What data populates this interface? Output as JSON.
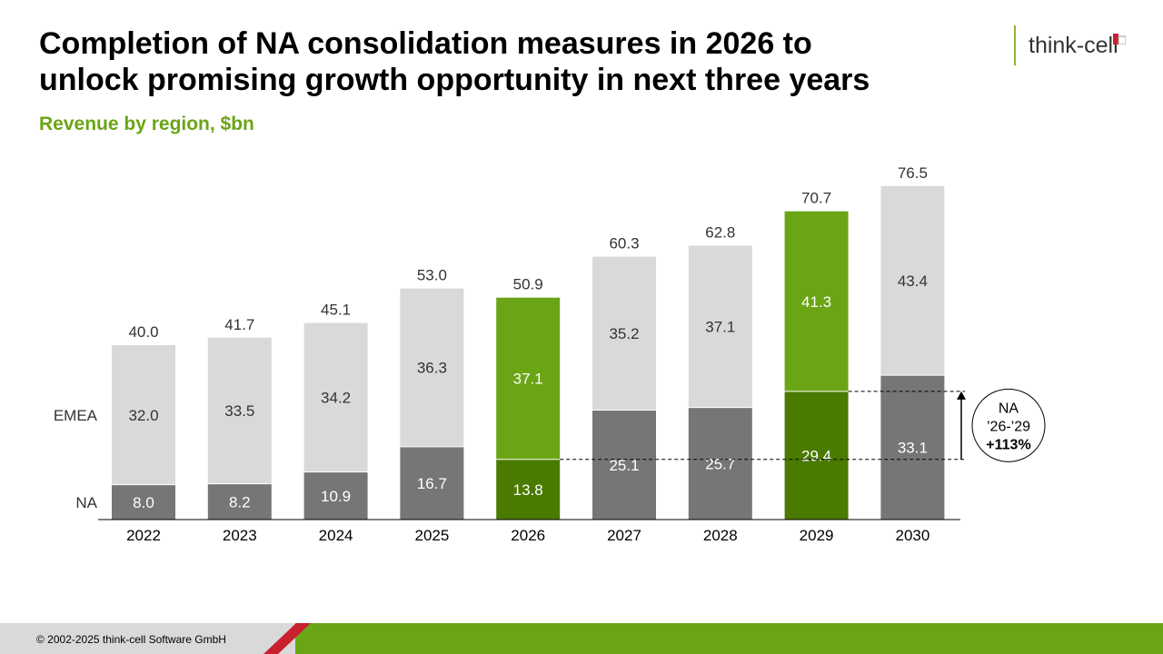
{
  "header": {
    "title_line1": "Completion of NA consolidation measures in 2026 to",
    "title_line2": "unlock promising growth opportunity in next three years",
    "subtitle": "Revenue by region, $bn",
    "logo": "think-cell"
  },
  "footer": {
    "copyright": "© 2002-2025 think-cell Software GmbH"
  },
  "chart_data": {
    "type": "bar",
    "stacked": true,
    "categories": [
      "2022",
      "2023",
      "2024",
      "2025",
      "2026",
      "2027",
      "2028",
      "2029",
      "2030"
    ],
    "series": [
      {
        "name": "NA",
        "values": [
          8.0,
          8.2,
          10.9,
          16.7,
          13.8,
          25.1,
          25.7,
          29.4,
          33.1
        ],
        "labels": [
          "8.0",
          "8.2",
          "10.9",
          "16.7",
          "13.8",
          "25.1",
          "25.7",
          "29.4",
          "33.1"
        ]
      },
      {
        "name": "EMEA",
        "values": [
          32.0,
          33.5,
          34.2,
          36.3,
          37.1,
          35.2,
          37.1,
          41.3,
          43.4
        ],
        "labels": [
          "32.0",
          "33.5",
          "34.2",
          "36.3",
          "37.1",
          "35.2",
          "37.1",
          "41.3",
          "43.4"
        ]
      }
    ],
    "totals": [
      40.0,
      41.7,
      45.1,
      53.0,
      50.9,
      60.3,
      62.8,
      70.7,
      76.5
    ],
    "total_labels": [
      "40.0",
      "41.7",
      "45.1",
      "53.0",
      "50.9",
      "60.3",
      "62.8",
      "70.7",
      "76.5"
    ],
    "highlighted_categories": [
      "2026",
      "2029"
    ],
    "colors": {
      "na": "#767676",
      "emea": "#d9d9d9",
      "na_highlight": "#4a7a00",
      "emea_highlight": "#6aa515",
      "axis": "#000000"
    },
    "annotation": {
      "from": "2026",
      "to": "2029",
      "series": "NA",
      "label_line1": "NA",
      "label_line2": "’26-’29",
      "label_line3": "+113%"
    },
    "xlabel": "",
    "ylabel": "",
    "legend_position": "left-inline"
  }
}
